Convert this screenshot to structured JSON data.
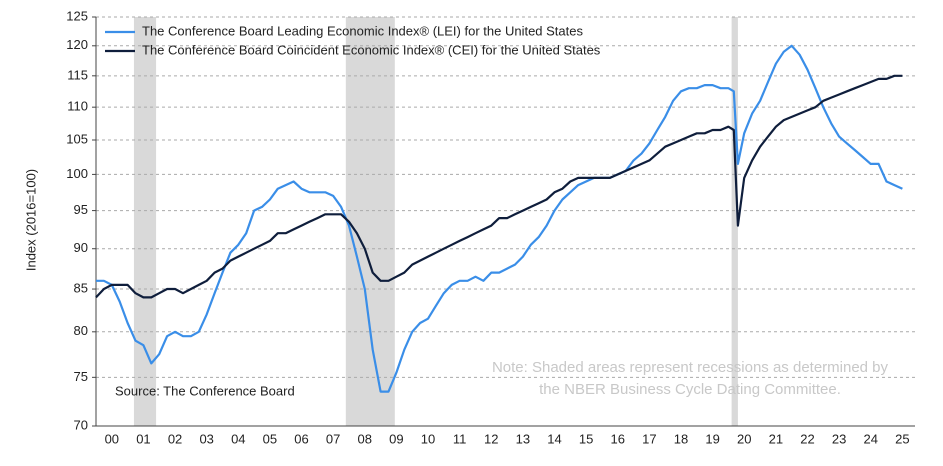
{
  "chart_data": {
    "type": "line",
    "y_label": "Index (2016=100)",
    "source": "Source: The Conference Board",
    "note": [
      "Note: Shaded areas represent recessions as determined by",
      "the NBER Business Cycle Dating Committee."
    ],
    "x": [
      0,
      0.25,
      0.5,
      0.75,
      1,
      1.25,
      1.5,
      1.75,
      2,
      2.25,
      2.5,
      2.75,
      3,
      3.25,
      3.5,
      3.75,
      4,
      4.25,
      4.5,
      4.75,
      5,
      5.25,
      5.5,
      5.75,
      6,
      6.25,
      6.5,
      6.75,
      7,
      7.25,
      7.5,
      7.75,
      8,
      8.25,
      8.5,
      8.75,
      9,
      9.25,
      9.5,
      9.75,
      10,
      10.25,
      10.5,
      10.75,
      11,
      11.25,
      11.5,
      11.75,
      12,
      12.25,
      12.5,
      12.75,
      13,
      13.25,
      13.5,
      13.75,
      14,
      14.25,
      14.5,
      14.75,
      15,
      15.25,
      15.5,
      15.75,
      16,
      16.25,
      16.5,
      16.75,
      17,
      17.25,
      17.5,
      17.75,
      18,
      18.25,
      18.5,
      18.75,
      19,
      19.25,
      19.5,
      19.75,
      20,
      20.17,
      20.3,
      20.5,
      20.75,
      21,
      21.25,
      21.5,
      21.75,
      22,
      22.25,
      22.5,
      22.75,
      23,
      23.25,
      23.5,
      23.75,
      24,
      24.25,
      24.5,
      24.75,
      25,
      25.25,
      25.5
    ],
    "series": [
      {
        "name": "The Conference Board Leading Economic Index® (LEI) for the United States",
        "color": "#3a8ee8",
        "values": [
          86,
          86,
          85.5,
          83.5,
          81,
          79,
          78.5,
          76.5,
          77.5,
          79.5,
          80,
          79.5,
          79.5,
          80,
          82,
          84.5,
          87,
          89.5,
          90.5,
          92,
          95,
          95.5,
          96.5,
          98,
          98.5,
          99,
          98,
          97.5,
          97.5,
          97.5,
          97,
          95.5,
          93,
          89,
          85,
          78,
          73.5,
          73.5,
          75.5,
          78,
          80,
          81,
          81.5,
          83,
          84.5,
          85.5,
          86,
          86,
          86.5,
          86,
          87,
          87,
          87.5,
          88,
          89,
          90.5,
          91.5,
          93,
          95,
          96.5,
          97.5,
          98.5,
          99,
          99.5,
          99.5,
          99.5,
          100,
          100.5,
          102,
          103,
          104.5,
          106.5,
          108.5,
          111,
          112.5,
          113,
          113,
          113.5,
          113.5,
          113,
          113,
          112.5,
          101.5,
          106,
          109,
          111,
          114,
          117,
          119,
          120,
          118.5,
          116,
          113,
          110,
          107.5,
          105.5,
          104.5,
          103.5,
          102.5,
          101.5,
          101.5,
          99,
          98.5,
          98
        ]
      },
      {
        "name": "The Conference Board Coincident Economic Index® (CEI) for the United States",
        "color": "#0f1e3c",
        "values": [
          84,
          85,
          85.5,
          85.5,
          85.5,
          84.5,
          84,
          84,
          84.5,
          85,
          85,
          84.5,
          85,
          85.5,
          86,
          87,
          87.5,
          88.5,
          89,
          89.5,
          90,
          90.5,
          91,
          92,
          92,
          92.5,
          93,
          93.5,
          94,
          94.5,
          94.5,
          94.5,
          93.5,
          92,
          90,
          87,
          86,
          86,
          86.5,
          87,
          88,
          88.5,
          89,
          89.5,
          90,
          90.5,
          91,
          91.5,
          92,
          92.5,
          93,
          94,
          94,
          94.5,
          95,
          95.5,
          96,
          96.5,
          97.5,
          98,
          99,
          99.5,
          99.5,
          99.5,
          99.5,
          99.5,
          100,
          100.5,
          101,
          101.5,
          102,
          103,
          104,
          104.5,
          105,
          105.5,
          106,
          106,
          106.5,
          106.5,
          107,
          106.5,
          93,
          99.5,
          102,
          104,
          105.5,
          107,
          108,
          108.5,
          109,
          109.5,
          110,
          111,
          111.5,
          112,
          112.5,
          113,
          113.5,
          114,
          114.5,
          114.5,
          115,
          115
        ]
      }
    ],
    "recessions": [
      [
        1.2,
        1.9
      ],
      [
        7.9,
        9.45
      ],
      [
        20.1,
        20.3
      ]
    ],
    "recession_color": "#d9d9d9",
    "xlim": [
      0,
      25.9
    ],
    "xticks": [
      {
        "value": 0.5,
        "label": "00"
      },
      {
        "value": 1.5,
        "label": "01"
      },
      {
        "value": 2.5,
        "label": "02"
      },
      {
        "value": 3.5,
        "label": "03"
      },
      {
        "value": 4.5,
        "label": "04"
      },
      {
        "value": 5.5,
        "label": "05"
      },
      {
        "value": 6.5,
        "label": "06"
      },
      {
        "value": 7.5,
        "label": "07"
      },
      {
        "value": 8.5,
        "label": "08"
      },
      {
        "value": 9.5,
        "label": "09"
      },
      {
        "value": 10.5,
        "label": "10"
      },
      {
        "value": 11.5,
        "label": "11"
      },
      {
        "value": 12.5,
        "label": "12"
      },
      {
        "value": 13.5,
        "label": "13"
      },
      {
        "value": 14.5,
        "label": "14"
      },
      {
        "value": 15.5,
        "label": "15"
      },
      {
        "value": 16.5,
        "label": "16"
      },
      {
        "value": 17.5,
        "label": "17"
      },
      {
        "value": 18.5,
        "label": "18"
      },
      {
        "value": 19.5,
        "label": "19"
      },
      {
        "value": 20.5,
        "label": "20"
      },
      {
        "value": 21.5,
        "label": "21"
      },
      {
        "value": 22.5,
        "label": "22"
      },
      {
        "value": 23.5,
        "label": "23"
      },
      {
        "value": 24.5,
        "label": "24"
      },
      {
        "value": 25.5,
        "label": "25"
      }
    ],
    "ylim": [
      70,
      125
    ],
    "yticks": [
      70,
      75,
      80,
      85,
      90,
      95,
      100,
      105,
      110,
      115,
      120,
      125
    ],
    "log_y": true,
    "grid": true
  }
}
